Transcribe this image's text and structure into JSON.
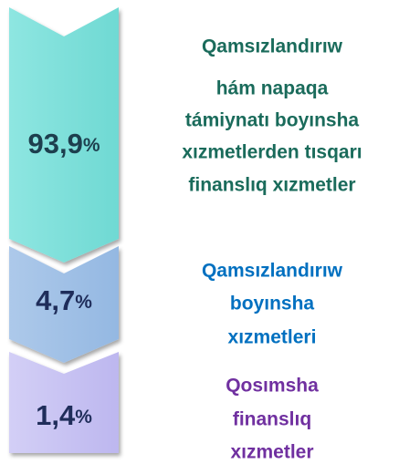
{
  "items": [
    {
      "value": "93,9",
      "unit": "%",
      "label": [
        "Qamsızlandırıw",
        "hám napaqa",
        "támiynatı boyınsha",
        "xızmetlerden tısqarı",
        "finanslıq xızmetler"
      ]
    },
    {
      "value": "4,7",
      "unit": "%",
      "label": [
        "Qamsızlandırıw",
        "boyınsha",
        "xızmetleri"
      ]
    },
    {
      "value": "1,4",
      "unit": "%",
      "label": [
        "Qosımsha",
        "finanslıq",
        "xızmetler"
      ]
    }
  ]
}
